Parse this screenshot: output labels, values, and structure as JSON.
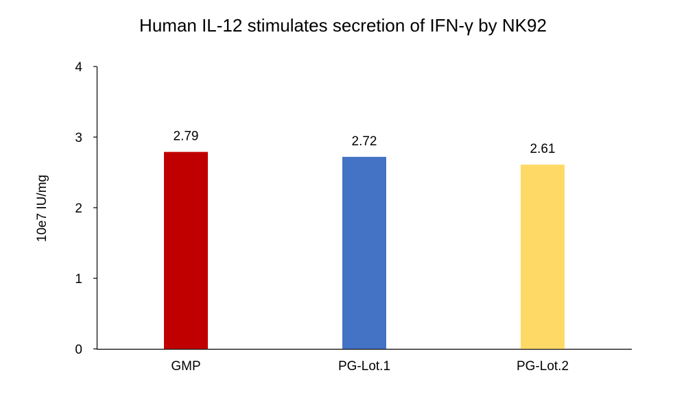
{
  "chart_data": {
    "type": "bar",
    "title": "Human IL-12 stimulates secretion of IFN-γ by NK92",
    "xlabel": "",
    "ylabel": "10e7 IU/mg",
    "categories": [
      "GMP",
      "PG-Lot.1",
      "PG-Lot.2"
    ],
    "values": [
      2.79,
      2.72,
      2.61
    ],
    "data_labels": [
      "2.79",
      "2.72",
      "2.61"
    ],
    "colors": [
      "#C00000",
      "#4472C4",
      "#FFD966"
    ],
    "ylim": [
      0,
      4
    ],
    "yticks": [
      0,
      1,
      2,
      3,
      4
    ],
    "ytick_labels": [
      "0",
      "1",
      "2",
      "3",
      "4"
    ],
    "grid": false,
    "legend": "none"
  }
}
